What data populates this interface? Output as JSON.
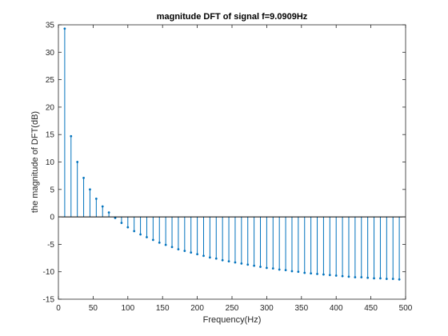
{
  "chart_data": {
    "type": "stem",
    "title": "magnitude DFT of signal f=9.0909Hz",
    "xlabel": "Frequency(Hz)",
    "ylabel": "the magnitude of DFT(dB)",
    "xlim": [
      0,
      500
    ],
    "ylim": [
      -15,
      35
    ],
    "xticks": [
      0,
      50,
      100,
      150,
      200,
      250,
      300,
      350,
      400,
      450,
      500
    ],
    "yticks": [
      -15,
      -10,
      -5,
      0,
      5,
      10,
      15,
      20,
      25,
      30,
      35
    ],
    "grid": false,
    "color": "#0072bd",
    "x": [
      9.0909,
      18.1818,
      27.2727,
      36.3636,
      45.4545,
      54.5455,
      63.6364,
      72.7273,
      81.8182,
      90.9091,
      100.0,
      109.0909,
      118.1818,
      127.2727,
      136.3636,
      145.4545,
      154.5455,
      163.6364,
      172.7273,
      181.8182,
      190.9091,
      200.0,
      209.0909,
      218.1818,
      227.2727,
      236.3636,
      245.4545,
      254.5455,
      263.6364,
      272.7273,
      281.8182,
      290.9091,
      300.0,
      309.0909,
      318.1818,
      327.2727,
      336.3636,
      345.4545,
      354.5455,
      363.6364,
      372.7273,
      381.8182,
      390.9091,
      400.0,
      409.0909,
      418.1818,
      427.2727,
      436.3636,
      445.4545,
      454.5455,
      463.6364,
      472.7273,
      481.8182,
      490.9091
    ],
    "y": [
      34.3,
      14.7,
      10.0,
      7.1,
      5.0,
      3.3,
      1.9,
      0.8,
      -0.2,
      -1.1,
      -1.9,
      -2.6,
      -3.2,
      -3.7,
      -4.2,
      -4.7,
      -5.1,
      -5.5,
      -5.9,
      -6.2,
      -6.5,
      -6.8,
      -7.1,
      -7.4,
      -7.6,
      -7.9,
      -8.1,
      -8.3,
      -8.5,
      -8.7,
      -8.9,
      -9.1,
      -9.3,
      -9.4,
      -9.6,
      -9.7,
      -9.9,
      -10.0,
      -10.2,
      -10.3,
      -10.4,
      -10.5,
      -10.6,
      -10.7,
      -10.8,
      -10.9,
      -11.0,
      -11.0,
      -11.1,
      -11.2,
      -11.2,
      -11.3,
      -11.3,
      -11.4
    ]
  }
}
